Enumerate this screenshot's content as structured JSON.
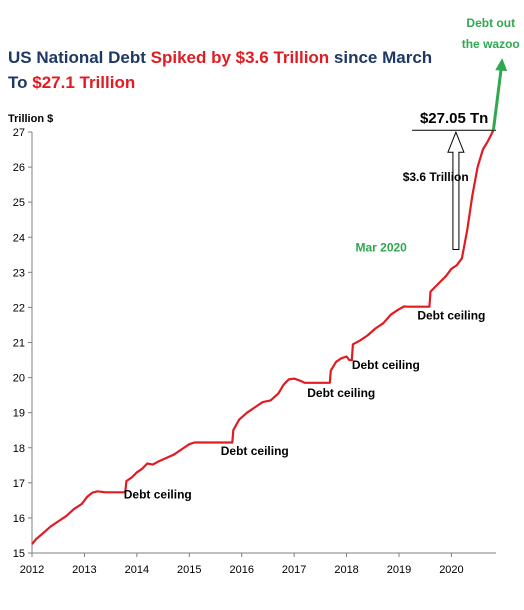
{
  "title": {
    "line1": [
      {
        "text": "US National Debt ",
        "color": "#1f3864"
      },
      {
        "text": "Spiked by $3.6 Trillion",
        "color": "#e11b22"
      },
      {
        "text": " since March",
        "color": "#1f3864"
      }
    ],
    "line2": [
      {
        "text": "To ",
        "color": "#1f3864"
      },
      {
        "text": "$27.1 Trillion",
        "color": "#e11b22"
      }
    ]
  },
  "chart_data": {
    "type": "line",
    "ylabel": "Trillion $",
    "xlabel": "",
    "xlim": [
      2012.0,
      2020.85
    ],
    "ylim": [
      15,
      27
    ],
    "x_ticks": [
      "2012",
      "2013",
      "2014",
      "2015",
      "2016",
      "2017",
      "2018",
      "2019",
      "2020"
    ],
    "y_ticks": [
      "15",
      "16",
      "17",
      "18",
      "19",
      "20",
      "21",
      "22",
      "23",
      "24",
      "25",
      "26",
      "27"
    ],
    "grid": false,
    "series": [
      {
        "color": "#e11b22",
        "points": [
          [
            2012.0,
            15.25
          ],
          [
            2012.08,
            15.4
          ],
          [
            2012.2,
            15.55
          ],
          [
            2012.35,
            15.75
          ],
          [
            2012.5,
            15.9
          ],
          [
            2012.65,
            16.05
          ],
          [
            2012.8,
            16.25
          ],
          [
            2012.95,
            16.4
          ],
          [
            2013.05,
            16.6
          ],
          [
            2013.15,
            16.72
          ],
          [
            2013.25,
            16.76
          ],
          [
            2013.4,
            16.73
          ],
          [
            2013.5,
            16.73
          ],
          [
            2013.78,
            16.73
          ],
          [
            2013.8,
            17.05
          ],
          [
            2013.9,
            17.15
          ],
          [
            2014.0,
            17.3
          ],
          [
            2014.1,
            17.4
          ],
          [
            2014.2,
            17.55
          ],
          [
            2014.3,
            17.52
          ],
          [
            2014.4,
            17.6
          ],
          [
            2014.55,
            17.7
          ],
          [
            2014.7,
            17.8
          ],
          [
            2014.85,
            17.95
          ],
          [
            2015.0,
            18.1
          ],
          [
            2015.1,
            18.15
          ],
          [
            2015.18,
            18.15
          ],
          [
            2015.82,
            18.15
          ],
          [
            2015.84,
            18.5
          ],
          [
            2015.95,
            18.8
          ],
          [
            2016.1,
            19.0
          ],
          [
            2016.25,
            19.15
          ],
          [
            2016.4,
            19.3
          ],
          [
            2016.55,
            19.35
          ],
          [
            2016.7,
            19.55
          ],
          [
            2016.8,
            19.8
          ],
          [
            2016.9,
            19.95
          ],
          [
            2017.0,
            19.97
          ],
          [
            2017.1,
            19.92
          ],
          [
            2017.2,
            19.85
          ],
          [
            2017.68,
            19.85
          ],
          [
            2017.7,
            20.2
          ],
          [
            2017.8,
            20.45
          ],
          [
            2017.9,
            20.55
          ],
          [
            2018.0,
            20.6
          ],
          [
            2018.05,
            20.5
          ],
          [
            2018.1,
            20.5
          ],
          [
            2018.12,
            20.95
          ],
          [
            2018.25,
            21.05
          ],
          [
            2018.4,
            21.2
          ],
          [
            2018.55,
            21.4
          ],
          [
            2018.7,
            21.55
          ],
          [
            2018.85,
            21.8
          ],
          [
            2019.0,
            21.95
          ],
          [
            2019.1,
            22.03
          ],
          [
            2019.15,
            22.02
          ],
          [
            2019.58,
            22.02
          ],
          [
            2019.6,
            22.45
          ],
          [
            2019.7,
            22.6
          ],
          [
            2019.8,
            22.75
          ],
          [
            2019.9,
            22.9
          ],
          [
            2020.0,
            23.1
          ],
          [
            2020.1,
            23.2
          ],
          [
            2020.2,
            23.4
          ],
          [
            2020.3,
            24.2
          ],
          [
            2020.4,
            25.2
          ],
          [
            2020.5,
            26.0
          ],
          [
            2020.6,
            26.5
          ],
          [
            2020.7,
            26.75
          ],
          [
            2020.8,
            27.05
          ]
        ]
      }
    ],
    "annotations": [
      {
        "text": "Debt ceiling",
        "x": 2013.75,
        "y": 16.55,
        "color": "#000000"
      },
      {
        "text": "Debt ceiling",
        "x": 2015.6,
        "y": 17.8,
        "color": "#000000"
      },
      {
        "text": "Debt ceiling",
        "x": 2017.25,
        "y": 19.45,
        "color": "#000000"
      },
      {
        "text": "Debt ceiling",
        "x": 2018.1,
        "y": 20.25,
        "color": "#000000"
      },
      {
        "text": "Debt ceiling",
        "x": 2019.35,
        "y": 21.65,
        "color": "#000000"
      },
      {
        "text": "Mar 2020",
        "x": 2019.15,
        "y": 23.6,
        "color": "#2fa84f"
      },
      {
        "text": "$3.6 Trillion",
        "x": 2019.7,
        "y": 25.6,
        "color": "#000000"
      },
      {
        "text": "$27.05 Tn",
        "x": 2019.4,
        "y": 27.25,
        "color": "#000000"
      },
      {
        "text": "Debt out",
        "x": 2020.75,
        "y": 30.0,
        "color": "#2fa84f"
      },
      {
        "text": "the wazoo",
        "x": 2020.75,
        "y": 29.4,
        "color": "#2fa84f"
      }
    ],
    "callout": {
      "x_mar": 2020.2,
      "y_mar": 23.65,
      "y_top": 27.05
    },
    "wazoo_arrow": {
      "from": [
        2020.8,
        27.05
      ],
      "to": [
        2020.95,
        29.05
      ]
    }
  }
}
